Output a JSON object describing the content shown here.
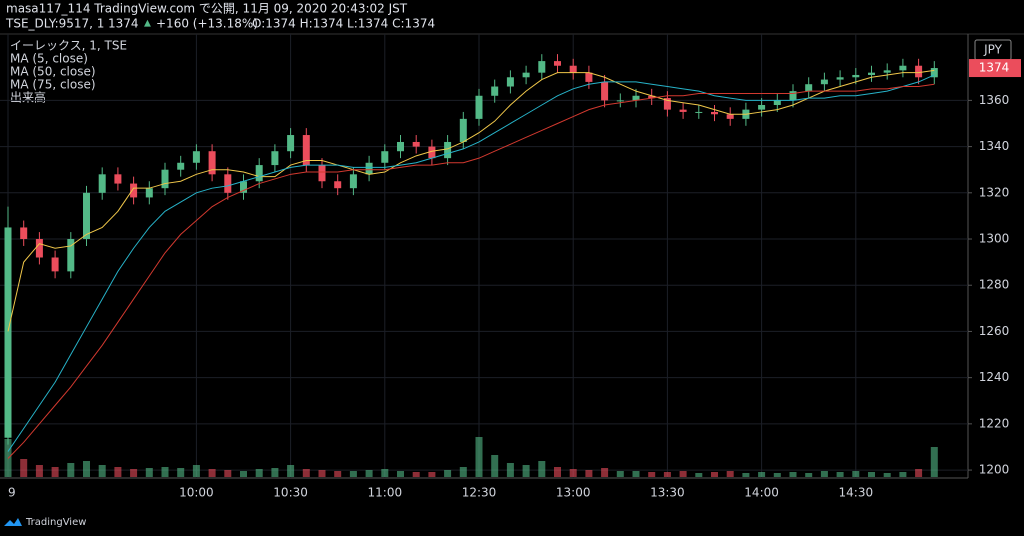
{
  "header": {
    "published": "masa117_114 TradingView.com で公開, 11月 09, 2020 20:43:02 JST",
    "symbol": "TSE_DLY:9517, 1",
    "last": "1374",
    "change": "+160 (+13.18%)",
    "ohlc": "O:1374 H:1374 L:1374 C:1374"
  },
  "footer": {
    "brand": "TradingView"
  },
  "chart_data": {
    "type": "candlestick",
    "title": "イーレックス, 1, TSE",
    "currency": "JPY",
    "categories": [
      "9",
      null,
      null,
      null,
      null,
      null,
      null,
      null,
      null,
      null,
      null,
      null,
      "10:00",
      null,
      null,
      null,
      null,
      null,
      "10:30",
      null,
      null,
      null,
      null,
      null,
      "11:00",
      null,
      null,
      null,
      null,
      null,
      "12:30",
      null,
      null,
      null,
      null,
      null,
      "13:00",
      null,
      null,
      null,
      null,
      null,
      "13:30",
      null,
      null,
      null,
      null,
      null,
      "14:00",
      null,
      null,
      null,
      null,
      null,
      "14:30",
      null,
      null,
      null,
      null,
      null
    ],
    "open": [
      1214,
      1305,
      1300,
      1292,
      1286,
      1300,
      1320,
      1328,
      1324,
      1318,
      1322,
      1330,
      1333,
      1338,
      1328,
      1320,
      1325,
      1332,
      1338,
      1345,
      1332,
      1325,
      1322,
      1328,
      1333,
      1338,
      1342,
      1340,
      1335,
      1342,
      1352,
      1362,
      1366,
      1370,
      1372,
      1377,
      1375,
      1372,
      1368,
      1360,
      1360,
      1362,
      1361,
      1356,
      1355,
      1355,
      1354,
      1352,
      1356,
      1358,
      1360,
      1364,
      1367,
      1369,
      1370,
      1371,
      1372,
      1373,
      1375,
      1370
    ],
    "high": [
      1314,
      1308,
      1303,
      1295,
      1303,
      1323,
      1331,
      1331,
      1327,
      1325,
      1333,
      1336,
      1341,
      1341,
      1331,
      1328,
      1335,
      1341,
      1348,
      1348,
      1335,
      1328,
      1331,
      1336,
      1341,
      1345,
      1345,
      1343,
      1345,
      1355,
      1365,
      1369,
      1373,
      1375,
      1380,
      1380,
      1378,
      1375,
      1371,
      1363,
      1365,
      1365,
      1364,
      1359,
      1358,
      1358,
      1357,
      1359,
      1361,
      1363,
      1367,
      1370,
      1372,
      1373,
      1374,
      1375,
      1376,
      1378,
      1378,
      1377
    ],
    "low": [
      1211,
      1297,
      1289,
      1283,
      1283,
      1297,
      1317,
      1321,
      1315,
      1315,
      1319,
      1327,
      1330,
      1325,
      1317,
      1317,
      1322,
      1329,
      1335,
      1329,
      1322,
      1319,
      1319,
      1325,
      1330,
      1335,
      1337,
      1332,
      1332,
      1339,
      1349,
      1359,
      1363,
      1367,
      1369,
      1372,
      1369,
      1365,
      1357,
      1357,
      1357,
      1358,
      1353,
      1352,
      1352,
      1351,
      1349,
      1349,
      1353,
      1355,
      1357,
      1361,
      1364,
      1366,
      1367,
      1368,
      1369,
      1370,
      1367,
      1367
    ],
    "close": [
      1305,
      1300,
      1292,
      1286,
      1300,
      1320,
      1328,
      1324,
      1318,
      1322,
      1330,
      1333,
      1338,
      1328,
      1320,
      1325,
      1332,
      1338,
      1345,
      1332,
      1325,
      1322,
      1328,
      1333,
      1338,
      1342,
      1340,
      1335,
      1342,
      1352,
      1362,
      1366,
      1370,
      1372,
      1377,
      1375,
      1372,
      1368,
      1360,
      1360,
      1362,
      1361,
      1356,
      1355,
      1355,
      1354,
      1352,
      1356,
      1358,
      1360,
      1364,
      1367,
      1369,
      1370,
      1371,
      1372,
      1373,
      1375,
      1370,
      1374
    ],
    "up_color": "#53b987",
    "down_color": "#eb4d5c",
    "series": [
      {
        "name": "MA (5, close)",
        "color": "#f0c74a",
        "values": [
          1260,
          1290,
          1298,
          1296,
          1297,
          1302,
          1305,
          1312,
          1322,
          1322,
          1324,
          1325,
          1328,
          1330,
          1330,
          1329,
          1327,
          1327,
          1332,
          1334,
          1334,
          1332,
          1330,
          1328,
          1329,
          1333,
          1336,
          1338,
          1339,
          1342,
          1346,
          1351,
          1358,
          1364,
          1369,
          1372,
          1372,
          1372,
          1370,
          1367,
          1364,
          1362,
          1360,
          1359,
          1358,
          1356,
          1354,
          1354,
          1355,
          1356,
          1358,
          1361,
          1364,
          1366,
          1368,
          1370,
          1371,
          1372,
          1372,
          1373
        ]
      },
      {
        "name": "MA (50, close)",
        "color": "#27b3c9",
        "values": [
          1208,
          1218,
          1228,
          1238,
          1250,
          1262,
          1274,
          1286,
          1296,
          1305,
          1312,
          1316,
          1320,
          1322,
          1323,
          1325,
          1327,
          1329,
          1331,
          1332,
          1332,
          1332,
          1331,
          1331,
          1331,
          1332,
          1333,
          1335,
          1337,
          1339,
          1342,
          1346,
          1350,
          1354,
          1358,
          1362,
          1365,
          1367,
          1368,
          1368,
          1368,
          1367,
          1366,
          1365,
          1364,
          1362,
          1361,
          1360,
          1360,
          1360,
          1360,
          1361,
          1361,
          1362,
          1362,
          1363,
          1364,
          1366,
          1368,
          1371
        ]
      },
      {
        "name": "MA (75, close)",
        "color": "#d2392f",
        "values": [
          1205,
          1212,
          1220,
          1228,
          1236,
          1245,
          1254,
          1264,
          1274,
          1284,
          1294,
          1302,
          1308,
          1314,
          1318,
          1321,
          1324,
          1326,
          1328,
          1329,
          1329,
          1329,
          1330,
          1330,
          1330,
          1331,
          1332,
          1332,
          1333,
          1333,
          1335,
          1338,
          1341,
          1344,
          1347,
          1350,
          1353,
          1356,
          1358,
          1359,
          1360,
          1361,
          1362,
          1362,
          1363,
          1363,
          1363,
          1363,
          1363,
          1363,
          1363,
          1364,
          1364,
          1364,
          1364,
          1365,
          1365,
          1366,
          1366,
          1367
        ]
      }
    ],
    "volume_name": "出来高",
    "volume": [
      38,
      18,
      12,
      10,
      14,
      16,
      12,
      10,
      8,
      9,
      10,
      9,
      12,
      8,
      7,
      6,
      8,
      9,
      12,
      8,
      7,
      6,
      6,
      7,
      8,
      6,
      5,
      5,
      7,
      10,
      40,
      22,
      14,
      12,
      16,
      10,
      8,
      7,
      9,
      6,
      6,
      5,
      5,
      6,
      4,
      5,
      6,
      4,
      5,
      4,
      5,
      4,
      6,
      5,
      6,
      5,
      4,
      5,
      8,
      30
    ],
    "last_price": 1374,
    "ylim": [
      1197,
      1387
    ],
    "yticks": [
      1200,
      1220,
      1240,
      1260,
      1280,
      1300,
      1320,
      1340,
      1360
    ],
    "grid": true
  }
}
